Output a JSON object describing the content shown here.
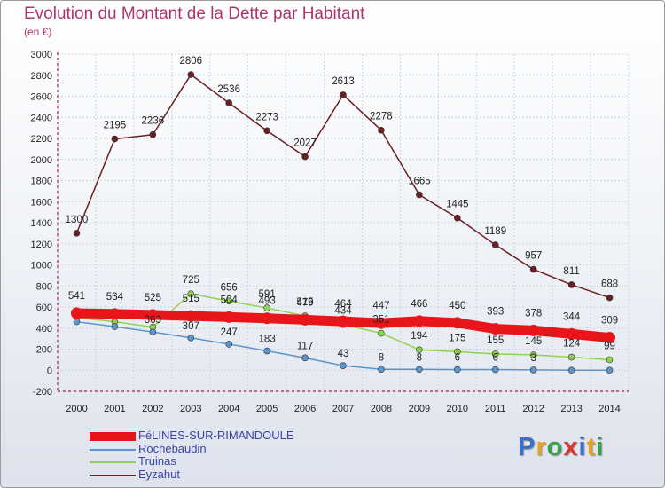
{
  "title": "Evolution du Montant de la Dette par Habitant",
  "subtitle": "(en €)",
  "logo": [
    "P",
    "r",
    "o",
    "x",
    "i",
    "t",
    "i"
  ],
  "logo_colors": [
    "#3a6ec9",
    "#e8a020",
    "#3aa04a",
    "#d73a2a",
    "#3a6ec9",
    "#e8a020",
    "#3aa04a"
  ],
  "chart_data": {
    "type": "line",
    "x": [
      "2000",
      "2001",
      "2002",
      "2003",
      "2004",
      "2005",
      "2006",
      "2007",
      "2008",
      "2009",
      "2010",
      "2011",
      "2012",
      "2013",
      "2014"
    ],
    "ylim": [
      -200,
      3000
    ],
    "yticks": [
      "-200",
      "0",
      "200",
      "400",
      "600",
      "800",
      "1000",
      "1200",
      "1400",
      "1600",
      "1800",
      "2000",
      "2200",
      "2400",
      "2600",
      "2800",
      "3000"
    ],
    "legend_position": "bottom-left",
    "series": [
      {
        "name": "FéLINES-SUR-RIMANDOULE",
        "color": "#e8161b",
        "values": [
          541,
          534,
          525,
          515,
          504,
          493,
          479,
          464,
          447,
          466,
          450,
          393,
          378,
          344,
          309
        ],
        "labels": [
          "541",
          "534",
          "525",
          "515",
          "504",
          "493",
          "479",
          "464",
          "447",
          "466",
          "450",
          "393",
          "378",
          "344",
          "309"
        ]
      },
      {
        "name": "Rochebaudin",
        "color": "#5b95cf",
        "values": [
          460,
          414,
          363,
          307,
          247,
          183,
          117,
          43,
          8,
          8,
          6,
          6,
          3,
          0,
          0
        ],
        "labels": [
          "",
          "",
          "363",
          "307",
          "247",
          "183",
          "117",
          "43",
          "8",
          "8",
          "6",
          "6",
          "3",
          "",
          ""
        ]
      },
      {
        "name": "Truinas",
        "color": "#8dd44a",
        "values": [
          500,
          460,
          410,
          725,
          656,
          591,
          515,
          434,
          351,
          194,
          175,
          155,
          145,
          124,
          99
        ],
        "labels": [
          "",
          "",
          "",
          "725",
          "656",
          "591",
          "515",
          "434",
          "351",
          "194",
          "175",
          "155",
          "145",
          "124",
          "99"
        ]
      },
      {
        "name": "Eyzahut",
        "color": "#6b1f22",
        "values": [
          1300,
          2195,
          2236,
          2806,
          2536,
          2273,
          2027,
          2613,
          2278,
          1665,
          1445,
          1189,
          957,
          811,
          688
        ],
        "labels": [
          "1300",
          "2195",
          "2236",
          "2806",
          "2536",
          "2273",
          "2027",
          "2613",
          "2278",
          "1665",
          "1445",
          "1189",
          "957",
          "811",
          "688"
        ]
      }
    ]
  }
}
